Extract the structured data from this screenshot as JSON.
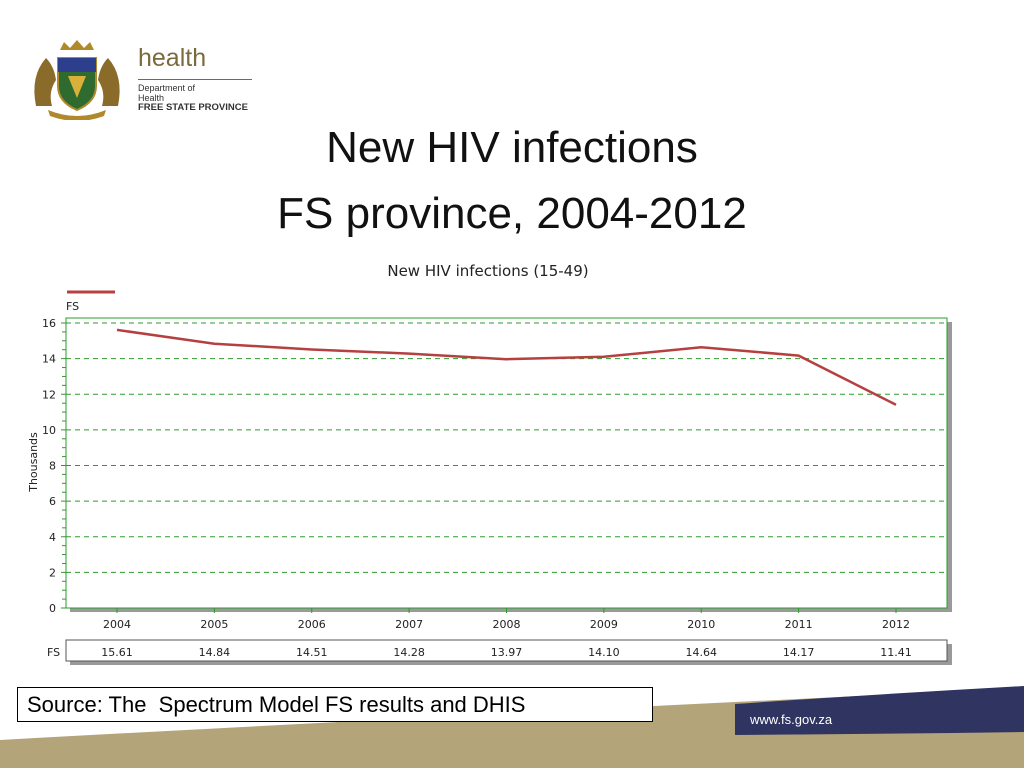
{
  "logo": {
    "brand": "health",
    "dept_line1": "Department of",
    "dept_line2": "Health",
    "dept_line3": "FREE STATE PROVINCE"
  },
  "slide": {
    "title_line1": "New HIV infections",
    "title_line2": "FS province, 2004-2012"
  },
  "chart_data": {
    "type": "line",
    "title": "New HIV infections (15-49)",
    "ylabel": "Thousands",
    "ylim": [
      0,
      16
    ],
    "yticks": [
      0,
      2,
      4,
      6,
      8,
      10,
      12,
      14,
      16
    ],
    "grid": true,
    "legend_position": "top-left",
    "categories": [
      "2004",
      "2005",
      "2006",
      "2007",
      "2008",
      "2009",
      "2010",
      "2011",
      "2012"
    ],
    "series": [
      {
        "name": "FS",
        "color": "#b5403f",
        "values": [
          15.61,
          14.84,
          14.51,
          14.28,
          13.97,
          14.1,
          14.64,
          14.17,
          11.41
        ]
      }
    ],
    "table_labels": [
      "15.61",
      "14.84",
      "14.51",
      "14.28",
      "13.97",
      "14.10",
      "14.64",
      "14.17",
      "11.41"
    ]
  },
  "footer": {
    "source": "Source: The  Spectrum Model FS results and DHIS",
    "website": "www.fs.gov.za"
  },
  "colors": {
    "line": "#b5403f",
    "grid": "#2e9a2e",
    "footer_tan": "#b3a47a",
    "footer_navy": "#2f3460"
  }
}
